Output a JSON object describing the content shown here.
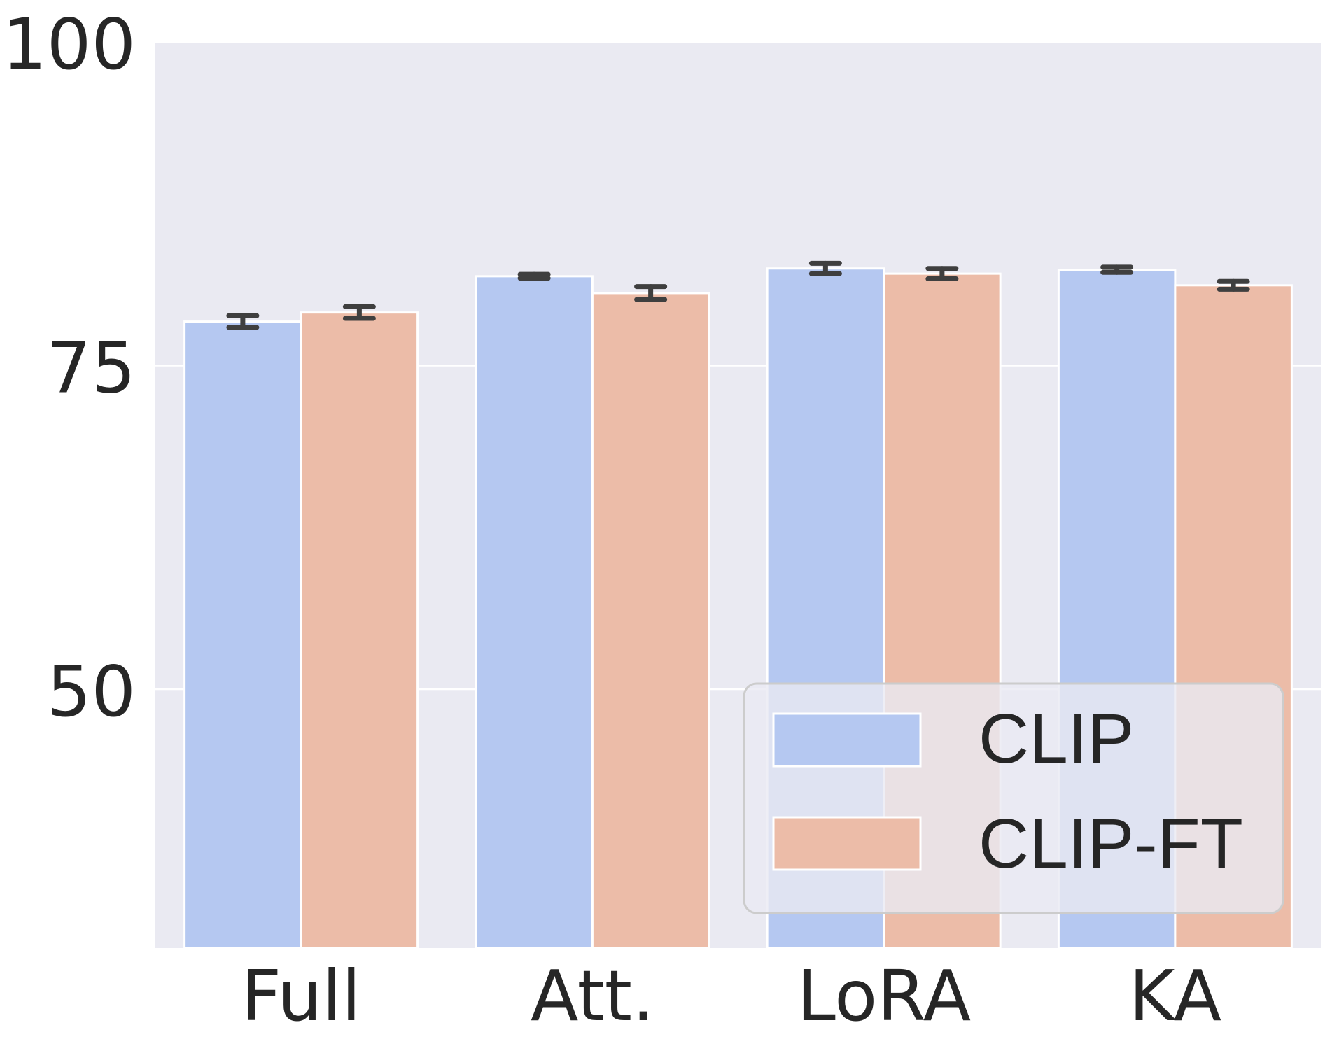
{
  "chart_data": {
    "type": "bar",
    "title": "",
    "xlabel": "",
    "ylabel": "",
    "categories": [
      "Full",
      "Att.",
      "LoRA",
      "KA"
    ],
    "ylim": [
      30,
      100
    ],
    "yticks": [
      50,
      75,
      100
    ],
    "grid": true,
    "legend_position": "bottom-right",
    "series": [
      {
        "name": "CLIP",
        "color": "#b5c8f1",
        "values": [
          78.4,
          81.9,
          82.5,
          82.4
        ],
        "errors": [
          0.45,
          0.15,
          0.4,
          0.2
        ]
      },
      {
        "name": "CLIP-FT",
        "color": "#ecbca8",
        "values": [
          79.1,
          80.6,
          82.1,
          81.2
        ],
        "errors": [
          0.45,
          0.5,
          0.4,
          0.3
        ]
      }
    ],
    "colors": {
      "plot_background": "#eaeaf2",
      "grid": "#ffffff",
      "error_bar": "#3f3f3f",
      "text": "#262626"
    }
  }
}
